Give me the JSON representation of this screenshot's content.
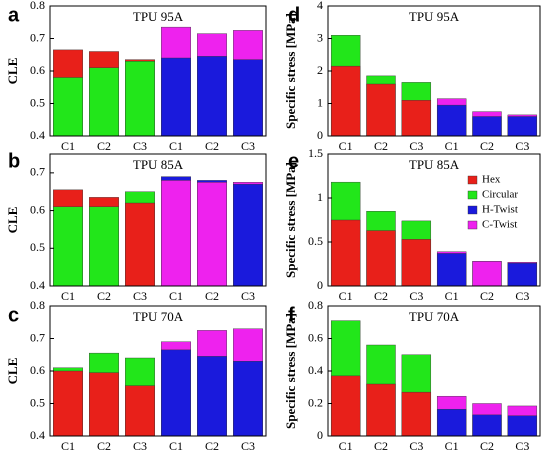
{
  "chart_data": [
    {
      "type": "bar",
      "label": "a",
      "title": "TPU 95A",
      "ylabel": "CLE",
      "categories": [
        "C1",
        "C2",
        "C3",
        "C1",
        "C2",
        "C3"
      ],
      "series": [
        {
          "name": "Hex",
          "color": "#e8201a",
          "values": [
            0.665,
            0.66,
            0.635,
            null,
            null,
            null
          ]
        },
        {
          "name": "Circular",
          "color": "#22e61a",
          "values": [
            0.58,
            0.61,
            0.63,
            null,
            null,
            null
          ]
        },
        {
          "name": "H-Twist",
          "color": "#1a1adc",
          "values": [
            null,
            null,
            null,
            0.64,
            0.645,
            0.635
          ]
        },
        {
          "name": "C-Twist",
          "color": "#ee22ee",
          "values": [
            null,
            null,
            null,
            0.735,
            0.715,
            0.725
          ]
        }
      ],
      "ylim": [
        0.4,
        0.8
      ],
      "yticks": [
        0.4,
        0.5,
        0.6,
        0.7,
        0.8
      ]
    },
    {
      "type": "bar",
      "label": "b",
      "title": "TPU 85A",
      "ylabel": "CLE",
      "categories": [
        "C1",
        "C2",
        "C3",
        "C1",
        "C2",
        "C3"
      ],
      "series": [
        {
          "name": "Hex",
          "color": "#e8201a",
          "values": [
            0.655,
            0.635,
            0.62,
            null,
            null,
            null
          ]
        },
        {
          "name": "Circular",
          "color": "#22e61a",
          "values": [
            0.61,
            0.61,
            0.65,
            null,
            null,
            null
          ]
        },
        {
          "name": "H-Twist",
          "color": "#1a1adc",
          "values": [
            null,
            null,
            null,
            0.69,
            0.68,
            0.67
          ]
        },
        {
          "name": "C-Twist",
          "color": "#ee22ee",
          "values": [
            null,
            null,
            null,
            0.68,
            0.675,
            0.675
          ]
        }
      ],
      "ylim": [
        0.4,
        0.75
      ],
      "yticks": [
        0.4,
        0.5,
        0.6,
        0.7
      ]
    },
    {
      "type": "bar",
      "label": "c",
      "title": "TPU 70A",
      "ylabel": "CLE",
      "categories": [
        "C1",
        "C2",
        "C3",
        "C1",
        "C2",
        "C3"
      ],
      "series": [
        {
          "name": "Hex",
          "color": "#e8201a",
          "values": [
            0.6,
            0.595,
            0.555,
            null,
            null,
            null
          ]
        },
        {
          "name": "Circular",
          "color": "#22e61a",
          "values": [
            0.61,
            0.655,
            0.64,
            null,
            null,
            null
          ]
        },
        {
          "name": "H-Twist",
          "color": "#1a1adc",
          "values": [
            null,
            null,
            null,
            0.665,
            0.645,
            0.63
          ]
        },
        {
          "name": "C-Twist",
          "color": "#ee22ee",
          "values": [
            null,
            null,
            null,
            0.69,
            0.725,
            0.73
          ]
        }
      ],
      "ylim": [
        0.4,
        0.8
      ],
      "yticks": [
        0.4,
        0.5,
        0.6,
        0.7,
        0.8
      ]
    },
    {
      "type": "bar",
      "label": "d",
      "title": "TPU 95A",
      "ylabel": "Specific stress  [MPa]",
      "categories": [
        "C1",
        "C2",
        "C3",
        "C1",
        "C2",
        "C3"
      ],
      "series": [
        {
          "name": "Hex",
          "color": "#e8201a",
          "values": [
            2.15,
            1.6,
            1.1,
            null,
            null,
            null
          ]
        },
        {
          "name": "Circular",
          "color": "#22e61a",
          "values": [
            3.1,
            1.85,
            1.65,
            null,
            null,
            null
          ]
        },
        {
          "name": "H-Twist",
          "color": "#1a1adc",
          "values": [
            null,
            null,
            null,
            0.95,
            0.6,
            0.6
          ]
        },
        {
          "name": "C-Twist",
          "color": "#ee22ee",
          "values": [
            null,
            null,
            null,
            1.15,
            0.75,
            0.65
          ]
        }
      ],
      "ylim": [
        0,
        4
      ],
      "yticks": [
        0,
        1,
        2,
        3,
        4
      ]
    },
    {
      "type": "bar",
      "label": "e",
      "title": "TPU 85A",
      "ylabel": "Specific stress  [MPa]",
      "categories": [
        "C1",
        "C2",
        "C3",
        "C1",
        "C2",
        "C3"
      ],
      "series": [
        {
          "name": "Hex",
          "color": "#e8201a",
          "values": [
            0.75,
            0.63,
            0.53,
            null,
            null,
            null
          ]
        },
        {
          "name": "Circular",
          "color": "#22e61a",
          "values": [
            1.18,
            0.85,
            0.74,
            null,
            null,
            null
          ]
        },
        {
          "name": "H-Twist",
          "color": "#1a1adc",
          "values": [
            null,
            null,
            null,
            0.37,
            0.28,
            0.26
          ]
        },
        {
          "name": "C-Twist",
          "color": "#ee22ee",
          "values": [
            null,
            null,
            null,
            0.39,
            0.28,
            0.27
          ]
        }
      ],
      "ylim": [
        0,
        1.5
      ],
      "yticks": [
        0,
        0.5,
        1,
        1.5
      ],
      "legend": "upper right"
    },
    {
      "type": "bar",
      "label": "f",
      "title": "TPU 70A",
      "ylabel": "Specific stress  [MPa]",
      "categories": [
        "C1",
        "C2",
        "C3",
        "C1",
        "C2",
        "C3"
      ],
      "series": [
        {
          "name": "Hex",
          "color": "#e8201a",
          "values": [
            0.37,
            0.32,
            0.27,
            null,
            null,
            null
          ]
        },
        {
          "name": "Circular",
          "color": "#22e61a",
          "values": [
            0.71,
            0.56,
            0.5,
            null,
            null,
            null
          ]
        },
        {
          "name": "H-Twist",
          "color": "#1a1adc",
          "values": [
            null,
            null,
            null,
            0.165,
            0.13,
            0.125
          ]
        },
        {
          "name": "C-Twist",
          "color": "#ee22ee",
          "values": [
            null,
            null,
            null,
            0.245,
            0.2,
            0.185
          ]
        }
      ],
      "ylim": [
        0,
        0.8
      ],
      "yticks": [
        0,
        0.2,
        0.4,
        0.6,
        0.8
      ]
    }
  ]
}
